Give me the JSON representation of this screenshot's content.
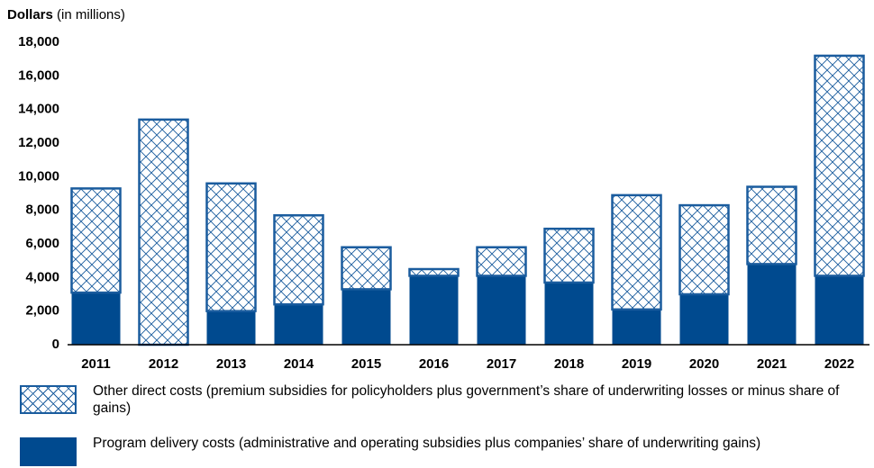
{
  "chart_data": {
    "type": "stacked-bar",
    "y_label": "Dollars",
    "y_label_unit": "(in millions)",
    "categories": [
      "2011",
      "2012",
      "2013",
      "2014",
      "2015",
      "2016",
      "2017",
      "2018",
      "2019",
      "2020",
      "2021",
      "2022"
    ],
    "series": [
      {
        "name": "Other direct costs (premium subsidies for policyholders plus government’s share of underwriting losses or minus share of gains)",
        "color": "#1a5c9e",
        "hatched": true,
        "values": [
          6200,
          13400,
          7600,
          5300,
          2500,
          400,
          1700,
          3200,
          6800,
          5300,
          4600,
          13100
        ]
      },
      {
        "name": "Program delivery costs (administrative and operating subsidies plus companies’ share of underwriting gains)",
        "color": "#004a8f",
        "hatched": false,
        "values": [
          3100,
          0,
          2000,
          2400,
          3300,
          4100,
          4100,
          3700,
          2100,
          3000,
          4800,
          4100
        ]
      }
    ],
    "ylim": [
      0,
      18000
    ],
    "yticks": [
      0,
      {
        "value": 2000,
        "label": "2,000"
      },
      {
        "value": 4000,
        "label": "4,000"
      },
      {
        "value": 6000,
        "label": "6,000"
      },
      {
        "value": 8000,
        "label": "8,000"
      },
      {
        "value": 10000,
        "label": "10,000"
      },
      {
        "value": 12000,
        "label": "12,000"
      },
      {
        "value": 14000,
        "label": "14,000"
      },
      {
        "value": 16000,
        "label": "16,000"
      },
      {
        "value": 18000,
        "label": "18,000"
      }
    ],
    "grid": false
  }
}
